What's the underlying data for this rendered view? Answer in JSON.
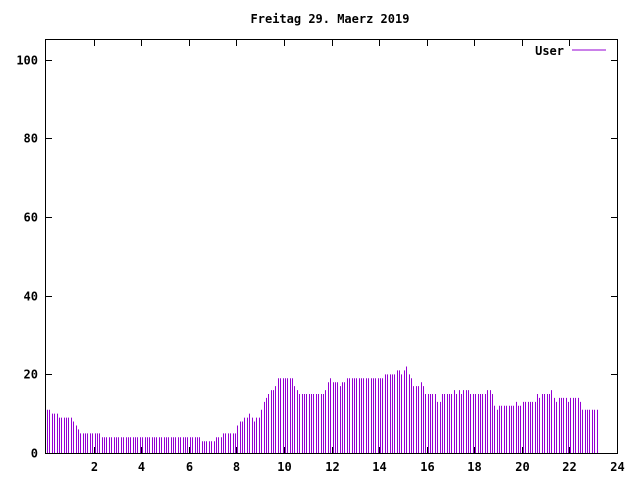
{
  "chart_data": {
    "type": "bar",
    "title": "Freitag 29. Maerz 2019",
    "xlabel": "",
    "ylabel": "",
    "xlim": [
      0,
      24
    ],
    "ylim": [
      0,
      105
    ],
    "x_ticks": [
      2,
      4,
      6,
      8,
      10,
      12,
      14,
      16,
      18,
      20,
      22,
      24
    ],
    "y_ticks": [
      0,
      20,
      40,
      60,
      80,
      100
    ],
    "grid": false,
    "legend": "top-right",
    "series": [
      {
        "name": "User",
        "color": "#9400d3",
        "sample_interval_hours": 0.1,
        "values": [
          11,
          11,
          10,
          10,
          10,
          9,
          9,
          9,
          9,
          9,
          9,
          8,
          7,
          6,
          5,
          5,
          5,
          5,
          5,
          5,
          5,
          5,
          5,
          4,
          4,
          4,
          4,
          4,
          4,
          4,
          4,
          4,
          4,
          4,
          4,
          4,
          4,
          4,
          4,
          4,
          4,
          4,
          4,
          4,
          4,
          4,
          4,
          4,
          4,
          4,
          4,
          4,
          4,
          4,
          4,
          4,
          4,
          4,
          4,
          4,
          4,
          4,
          4,
          4,
          4,
          3,
          3,
          3,
          3,
          3,
          3,
          4,
          4,
          4,
          5,
          5,
          5,
          5,
          5,
          5,
          7,
          8,
          8,
          9,
          9,
          10,
          9,
          8,
          9,
          9,
          11,
          13,
          14,
          15,
          16,
          16,
          17,
          19,
          19,
          19,
          19,
          19,
          19,
          19,
          17,
          16,
          15,
          15,
          15,
          15,
          15,
          15,
          15,
          15,
          15,
          15,
          15,
          16,
          18,
          19,
          18,
          18,
          18,
          17,
          18,
          18,
          19,
          19,
          19,
          19,
          19,
          19,
          19,
          19,
          19,
          19,
          19,
          19,
          19,
          19,
          19,
          19,
          20,
          20,
          20,
          20,
          20,
          21,
          21,
          20,
          21,
          22,
          20,
          19,
          17,
          17,
          17,
          18,
          17,
          15,
          15,
          15,
          15,
          15,
          13,
          13,
          15,
          15,
          15,
          15,
          15,
          16,
          15,
          16,
          15,
          16,
          16,
          16,
          15,
          15,
          15,
          15,
          15,
          15,
          15,
          16,
          16,
          15,
          12,
          11,
          12,
          12,
          12,
          12,
          12,
          12,
          12,
          13,
          12,
          12,
          13,
          13,
          13,
          13,
          13,
          13,
          15,
          14,
          15,
          15,
          15,
          15,
          16,
          14,
          13,
          14,
          14,
          14,
          14,
          13,
          14,
          14,
          14,
          14,
          13,
          11,
          11,
          11,
          11,
          11,
          11,
          11
        ]
      }
    ]
  }
}
